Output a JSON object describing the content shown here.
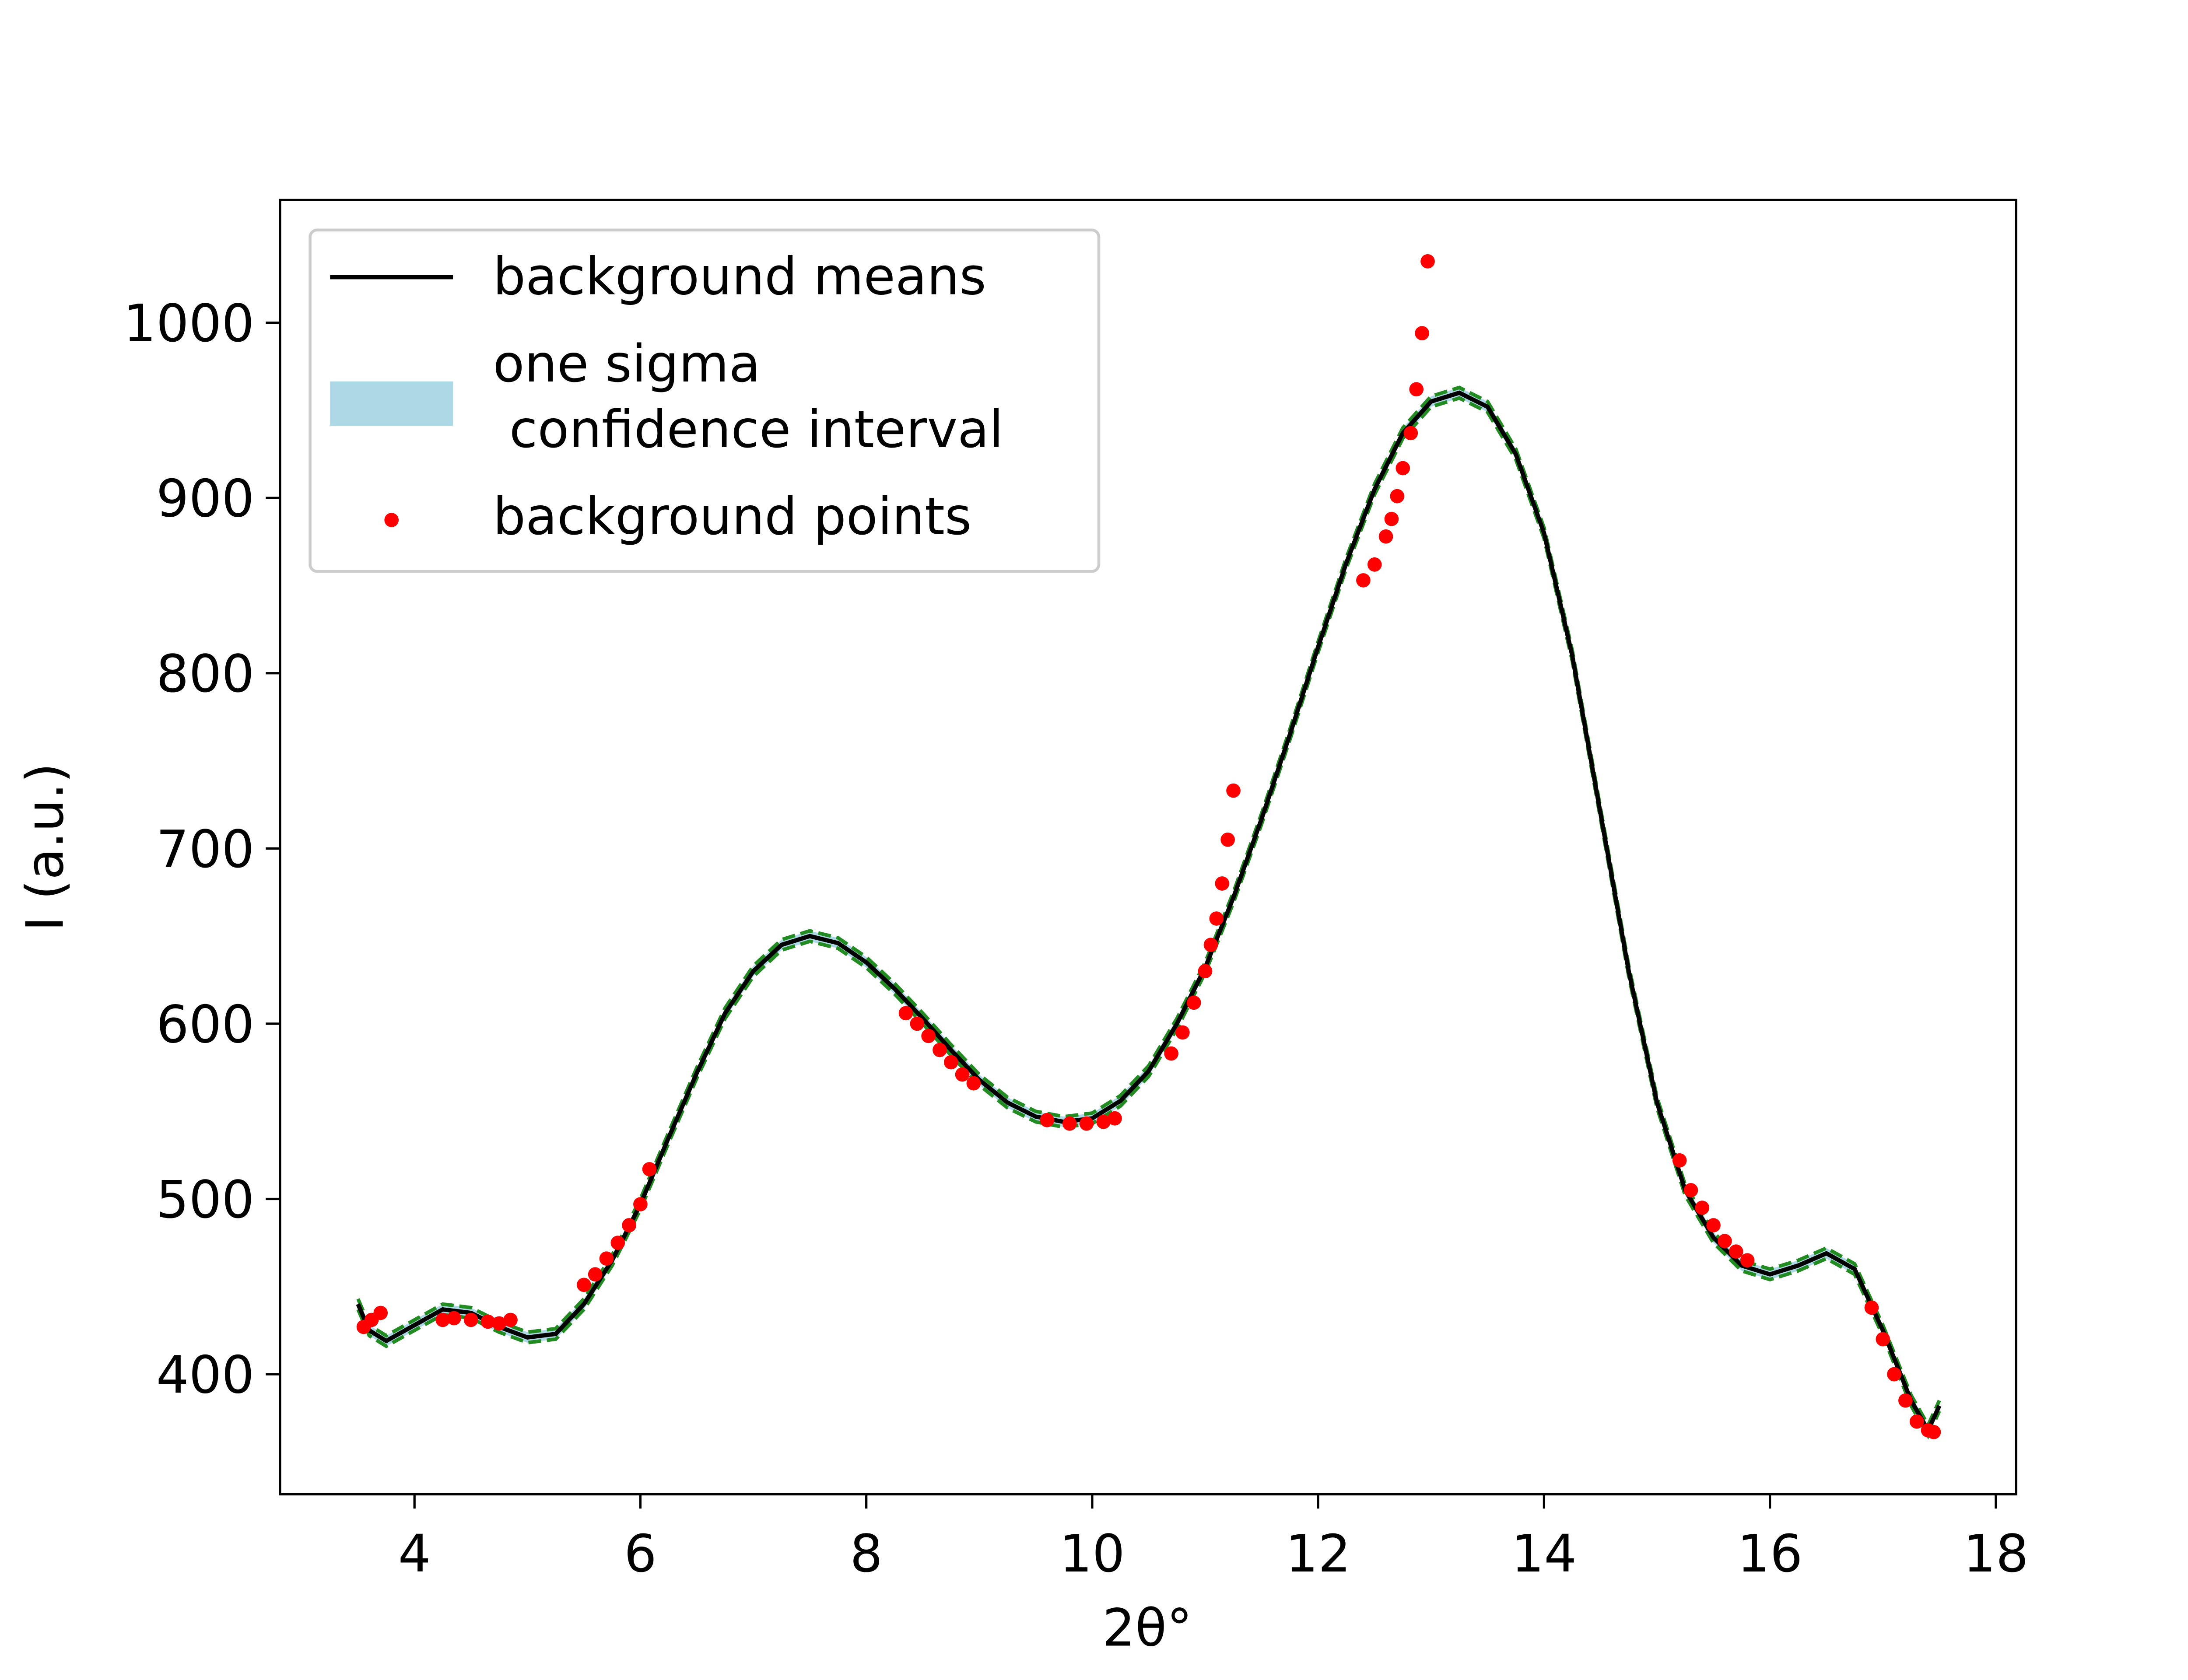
{
  "chart_data": {
    "type": "line",
    "xlabel": "2θ°",
    "ylabel": "I (a.u.)",
    "xlim": [
      2.81,
      18.18
    ],
    "ylim": [
      331.5,
      1070
    ],
    "xticks": [
      4,
      6,
      8,
      10,
      12,
      14,
      16,
      18
    ],
    "yticks": [
      400,
      500,
      600,
      700,
      800,
      900,
      1000
    ],
    "legend": "upper left",
    "x": [
      3.5,
      3.6,
      3.75,
      4.0,
      4.25,
      4.5,
      4.75,
      5.0,
      5.25,
      5.5,
      5.75,
      6.0,
      6.25,
      6.5,
      6.75,
      7.0,
      7.25,
      7.5,
      7.75,
      8.0,
      8.25,
      8.5,
      8.75,
      9.0,
      9.25,
      9.5,
      9.75,
      10.0,
      10.25,
      10.5,
      10.75,
      11.0,
      11.25,
      11.5,
      11.75,
      12.0,
      12.25,
      12.5,
      12.75,
      13.0,
      13.25,
      13.5,
      13.75,
      14.0,
      14.25,
      14.5,
      14.75,
      15.0,
      15.25,
      15.5,
      15.75,
      16.0,
      16.25,
      16.5,
      16.75,
      17.0,
      17.25,
      17.4,
      17.5
    ],
    "series": [
      {
        "name": "background means",
        "color": "#000000",
        "values": [
          440,
          425,
          419,
          428,
          437,
          435,
          427,
          421,
          423,
          440,
          465,
          497,
          535,
          572,
          606,
          630,
          645,
          650,
          646,
          635,
          620,
          603,
          585,
          568,
          555,
          547,
          544,
          546,
          556,
          573,
          600,
          632,
          672,
          717,
          765,
          815,
          863,
          905,
          937,
          955,
          960,
          952,
          925,
          880,
          810,
          720,
          630,
          555,
          505,
          478,
          462,
          457,
          462,
          469,
          460,
          425,
          385,
          368,
          382
        ]
      },
      {
        "name": "one sigma\n confidence interval",
        "color": "#add8e6",
        "edge_color": "#228b22",
        "lower": [
          437,
          422,
          416,
          425,
          434,
          432,
          424,
          418,
          420,
          437,
          462,
          494,
          532,
          569,
          603,
          627,
          642,
          647,
          643,
          632,
          617,
          600,
          582,
          565,
          552,
          544,
          541,
          543,
          553,
          570,
          597,
          629,
          669,
          714,
          762,
          812,
          860,
          902,
          934,
          952,
          957,
          949,
          922,
          877,
          807,
          717,
          627,
          552,
          502,
          475,
          459,
          454,
          459,
          466,
          457,
          422,
          382,
          365,
          379
        ],
        "upper": [
          443,
          428,
          422,
          431,
          440,
          438,
          430,
          424,
          426,
          443,
          468,
          500,
          538,
          575,
          609,
          633,
          648,
          653,
          649,
          638,
          623,
          606,
          588,
          571,
          558,
          550,
          547,
          549,
          559,
          576,
          603,
          635,
          675,
          720,
          768,
          818,
          866,
          908,
          940,
          958,
          963,
          955,
          928,
          883,
          813,
          723,
          633,
          558,
          508,
          481,
          465,
          460,
          465,
          472,
          463,
          428,
          388,
          371,
          385
        ]
      },
      {
        "name": "background points",
        "color": "#ff0000",
        "x": [
          3.55,
          3.62,
          3.7,
          4.25,
          4.35,
          4.5,
          4.65,
          4.75,
          4.85,
          5.5,
          5.6,
          5.7,
          5.8,
          5.9,
          6.0,
          6.08,
          8.35,
          8.45,
          8.55,
          8.65,
          8.75,
          8.85,
          8.95,
          9.6,
          9.8,
          9.95,
          10.1,
          10.2,
          10.7,
          10.8,
          10.9,
          11.0,
          11.05,
          11.1,
          11.15,
          11.2,
          11.25,
          12.4,
          12.5,
          12.6,
          12.65,
          12.7,
          12.75,
          12.82,
          12.87,
          12.92,
          12.97,
          15.2,
          15.3,
          15.4,
          15.5,
          15.6,
          15.7,
          15.8,
          16.9,
          17.0,
          17.1,
          17.2,
          17.3,
          17.4,
          17.45
        ],
        "values": [
          427,
          431,
          435,
          431,
          432,
          431,
          430,
          429,
          431,
          451,
          457,
          466,
          475,
          485,
          497,
          517,
          606,
          600,
          593,
          585,
          578,
          571,
          566,
          545,
          543,
          543,
          544,
          546,
          583,
          595,
          612,
          630,
          645,
          660,
          680,
          705,
          733,
          853,
          862,
          878,
          888,
          901,
          917,
          937,
          962,
          994,
          1035,
          522,
          505,
          495,
          485,
          476,
          470,
          465,
          438,
          420,
          400,
          385,
          373,
          368,
          367
        ]
      }
    ]
  }
}
